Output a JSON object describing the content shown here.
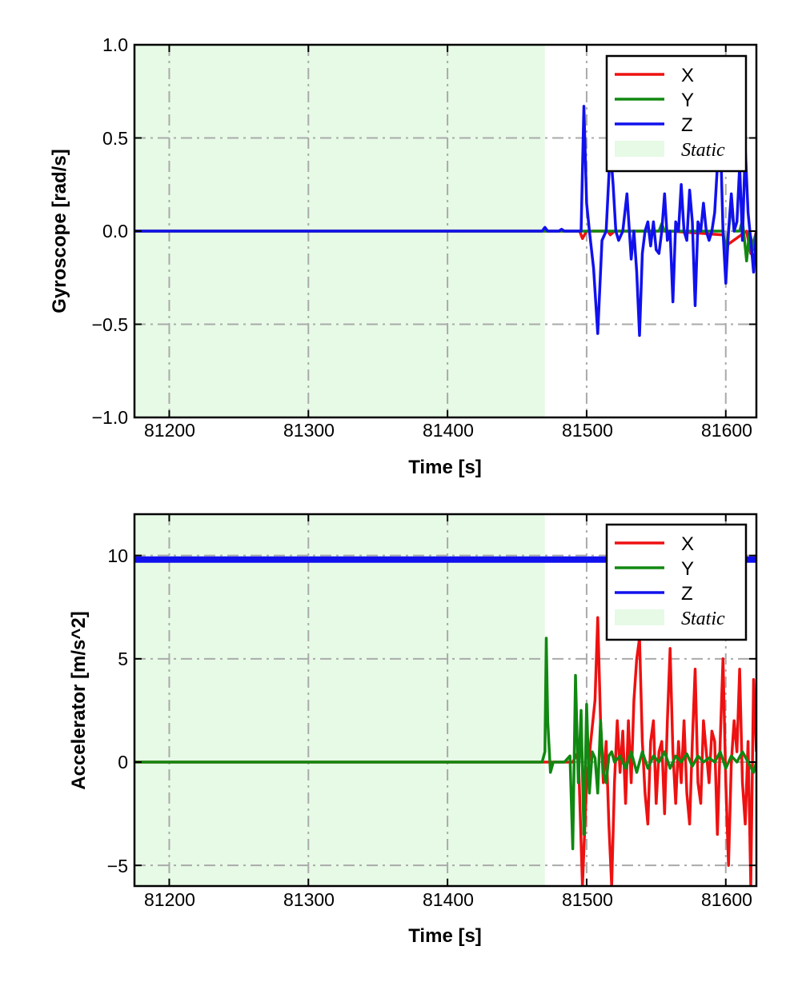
{
  "chart_data": [
    {
      "type": "line",
      "xlabel": "Time [s]",
      "ylabel": "Gyroscope [rad/s]",
      "xlim": [
        81175,
        81622
      ],
      "ylim": [
        -1.0,
        1.0
      ],
      "x_ticks": [
        81200,
        81300,
        81400,
        81500,
        81600
      ],
      "y_ticks": [
        -1.0,
        -0.5,
        0.0,
        0.5,
        1.0
      ],
      "y_tick_labels": [
        "−1.0",
        "−0.5",
        "0.0",
        "0.5",
        "1.0"
      ],
      "x_tick_labels": [
        "81200",
        "81300",
        "81400",
        "81500",
        "81600"
      ],
      "grid": true,
      "legend_position": "top-right",
      "shaded_region": {
        "label": "Static",
        "x_start": 81175,
        "x_end": 81470,
        "color": "#e6fae6"
      },
      "series": [
        {
          "name": "X",
          "color": "#ee1111",
          "x": [
            81175,
            81470,
            81495,
            81497,
            81500,
            81515,
            81517,
            81520,
            81560,
            81598,
            81600,
            81615,
            81618,
            81622
          ],
          "y": [
            0.0,
            0.0,
            0.0,
            -0.04,
            0.0,
            0.0,
            -0.02,
            0.0,
            0.0,
            -0.02,
            -0.08,
            0.0,
            -0.12,
            0.0
          ]
        },
        {
          "name": "Y",
          "color": "#118811",
          "x": [
            81175,
            81470,
            81500,
            81552,
            81554,
            81556,
            81598,
            81600,
            81602,
            81604,
            81606,
            81610,
            81612,
            81615,
            81617,
            81620,
            81622
          ],
          "y": [
            0.0,
            0.0,
            0.0,
            0.0,
            0.04,
            0.0,
            0.0,
            -0.13,
            0.0,
            0.15,
            0.0,
            0.0,
            0.06,
            -0.16,
            0.0,
            -0.1,
            0.0
          ]
        },
        {
          "name": "Z",
          "color": "#1111ee",
          "x": [
            81175,
            81468,
            81470,
            81472,
            81480,
            81482,
            81484,
            81496,
            81498,
            81500,
            81502,
            81505,
            81508,
            81511,
            81514,
            81517,
            81519,
            81521,
            81523,
            81526,
            81529,
            81532,
            81534,
            81536,
            81538,
            81540,
            81542,
            81544,
            81546,
            81548,
            81550,
            81552,
            81554,
            81556,
            81558,
            81560,
            81562,
            81564,
            81566,
            81568,
            81570,
            81572,
            81574,
            81576,
            81578,
            81580,
            81582,
            81584,
            81586,
            81588,
            81590,
            81592,
            81594,
            81596,
            81598,
            81600,
            81602,
            81604,
            81606,
            81608,
            81610,
            81612,
            81614,
            81616,
            81618,
            81620,
            81622
          ],
          "y": [
            0.0,
            0.0,
            0.02,
            0.0,
            0.0,
            0.01,
            0.0,
            0.0,
            0.67,
            0.15,
            0.0,
            -0.2,
            -0.55,
            -0.05,
            0.0,
            0.45,
            0.25,
            0.0,
            -0.05,
            0.0,
            0.2,
            -0.15,
            0.0,
            -0.22,
            -0.56,
            -0.12,
            0.0,
            0.05,
            -0.08,
            0.05,
            -0.1,
            -0.12,
            0.0,
            0.2,
            -0.05,
            0.0,
            -0.38,
            0.05,
            0.0,
            0.25,
            0.0,
            -0.05,
            0.22,
            0.05,
            -0.4,
            0.05,
            0.0,
            0.15,
            0.0,
            -0.05,
            0.0,
            0.1,
            0.35,
            0.55,
            0.0,
            -0.28,
            0.0,
            0.2,
            0.0,
            0.05,
            0.35,
            -0.05,
            0.45,
            0.1,
            -0.05,
            -0.22,
            0.0
          ]
        }
      ]
    },
    {
      "type": "line",
      "xlabel": "Time [s]",
      "ylabel": "Accelerator [m/s^2]",
      "xlim": [
        81175,
        81622
      ],
      "ylim": [
        -6,
        12
      ],
      "x_ticks": [
        81200,
        81300,
        81400,
        81500,
        81600
      ],
      "y_ticks": [
        -5,
        0,
        5,
        10
      ],
      "y_tick_labels": [
        "−5",
        "0",
        "5",
        "10"
      ],
      "x_tick_labels": [
        "81200",
        "81300",
        "81400",
        "81500",
        "81600"
      ],
      "grid": true,
      "legend_position": "top-right",
      "shaded_region": {
        "label": "Static",
        "x_start": 81175,
        "x_end": 81470,
        "color": "#e6fae6"
      },
      "series": [
        {
          "name": "X",
          "color": "#ee1111",
          "x": [
            81175,
            81470,
            81490,
            81494,
            81497,
            81500,
            81503,
            81506,
            81508,
            81510,
            81512,
            81514,
            81516,
            81518,
            81520,
            81522,
            81524,
            81526,
            81528,
            81530,
            81532,
            81534,
            81536,
            81538,
            81540,
            81542,
            81544,
            81546,
            81548,
            81550,
            81552,
            81554,
            81556,
            81558,
            81560,
            81562,
            81564,
            81566,
            81568,
            81570,
            81572,
            81574,
            81576,
            81578,
            81580,
            81582,
            81584,
            81586,
            81588,
            81590,
            81592,
            81594,
            81596,
            81598,
            81600,
            81602,
            81604,
            81606,
            81608,
            81610,
            81612,
            81614,
            81616,
            81618,
            81620,
            81622
          ],
          "y": [
            0.0,
            0.0,
            0.0,
            0.5,
            -6.0,
            -1.0,
            1.0,
            3.0,
            7.0,
            2.0,
            -1.0,
            1.0,
            -3.0,
            -6.0,
            -1.0,
            2.0,
            -0.5,
            1.5,
            -2.0,
            2.0,
            -1.0,
            3.0,
            5.0,
            6.0,
            1.0,
            -1.5,
            -3.0,
            1.0,
            2.0,
            -2.0,
            0.5,
            1.0,
            -2.5,
            2.0,
            5.5,
            0.5,
            -2.0,
            1.0,
            -1.0,
            2.0,
            -1.5,
            -3.0,
            1.0,
            4.5,
            -1.0,
            -2.0,
            2.0,
            0.5,
            -1.0,
            1.5,
            1.0,
            -3.5,
            1.0,
            5.0,
            -1.0,
            -5.0,
            0.0,
            2.0,
            0.5,
            4.5,
            -1.0,
            -3.0,
            1.0,
            -6.0,
            4.0,
            0.5
          ]
        },
        {
          "name": "Y",
          "color": "#118811",
          "x": [
            81175,
            81468,
            81470,
            81471,
            81472,
            81474,
            81476,
            81480,
            81484,
            81488,
            81490,
            81492,
            81494,
            81496,
            81498,
            81500,
            81502,
            81504,
            81506,
            81508,
            81510,
            81512,
            81514,
            81516,
            81518,
            81520,
            81524,
            81528,
            81532,
            81536,
            81540,
            81544,
            81548,
            81552,
            81556,
            81560,
            81564,
            81568,
            81572,
            81576,
            81580,
            81584,
            81588,
            81592,
            81596,
            81600,
            81604,
            81608,
            81612,
            81616,
            81620,
            81622
          ],
          "y": [
            0.0,
            0.0,
            0.5,
            6.0,
            2.0,
            -0.5,
            0.0,
            0.0,
            0.0,
            0.3,
            -4.2,
            4.2,
            -1.0,
            2.5,
            -3.5,
            2.8,
            -1.5,
            0.5,
            0.2,
            -1.5,
            2.0,
            -0.5,
            -1.0,
            0.3,
            0.5,
            0.0,
            0.3,
            -0.3,
            0.5,
            -0.5,
            0.5,
            -0.3,
            0.3,
            0.0,
            0.5,
            -0.3,
            0.3,
            0.0,
            0.4,
            -0.2,
            0.3,
            0.0,
            0.2,
            0.0,
            0.5,
            -0.3,
            0.3,
            0.0,
            0.5,
            0.0,
            -0.5,
            0.0
          ]
        },
        {
          "name": "Z",
          "color": "#1111ee",
          "x": [
            81175,
            81622
          ],
          "y": [
            9.8,
            9.8
          ]
        }
      ]
    }
  ]
}
